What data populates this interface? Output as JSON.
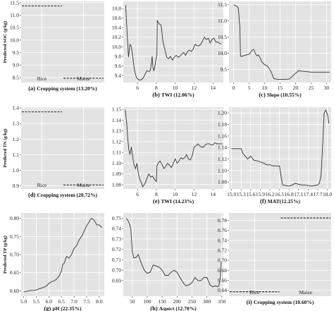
{
  "chart_data": [
    {
      "type": "line",
      "kind": "categorical",
      "caption": {
        "letter": "(a)",
        "text": "Cropping system (13.20%)"
      },
      "ylabel": "Predicted SOC (g/kg)",
      "categories": [
        "Rice",
        "Maize"
      ],
      "values": [
        11.37,
        8.47
      ],
      "ylim": [
        8.3,
        11.55
      ],
      "yticks": [
        8.5,
        9.0,
        9.5,
        10.0,
        10.5,
        11.0,
        11.5
      ],
      "yfmt": 1
    },
    {
      "type": "line",
      "kind": "continuous",
      "caption": {
        "letter": "(b)",
        "text": "TWI (12.06%)"
      },
      "xlim": [
        4.5,
        15.1
      ],
      "ylim": [
        9.25,
        10.95
      ],
      "xticks": [
        6,
        8,
        10,
        12,
        14
      ],
      "yticks": [
        9.4,
        9.6,
        9.8,
        10.0,
        10.2,
        10.4,
        10.6,
        10.8
      ],
      "xfmt": 0,
      "yfmt": 1,
      "x": [
        4.75,
        4.9,
        5.05,
        5.2,
        5.35,
        5.5,
        5.6,
        5.75,
        5.9,
        6.05,
        6.2,
        6.4,
        6.6,
        6.8,
        7.0,
        7.2,
        7.35,
        7.45,
        7.55,
        7.65,
        7.75,
        7.85,
        7.95,
        8.05,
        8.1,
        8.3,
        8.5,
        8.7,
        8.9,
        9.1,
        9.3,
        9.5,
        9.7,
        9.9,
        10.1,
        10.3,
        10.5,
        10.7,
        10.9,
        11.1,
        11.3,
        11.5,
        11.7,
        11.9,
        12.1,
        12.3,
        12.5,
        12.7,
        12.9,
        13.1,
        13.3,
        13.5,
        13.7,
        13.9,
        14.1,
        14.3,
        14.5,
        14.7,
        14.9
      ],
      "y": [
        10.87,
        10.3,
        9.78,
        10.05,
        10.0,
        9.8,
        9.62,
        9.45,
        9.35,
        9.32,
        9.3,
        9.31,
        9.34,
        9.42,
        9.5,
        9.48,
        9.5,
        9.62,
        9.8,
        9.55,
        9.5,
        9.6,
        9.72,
        9.84,
        10.55,
        10.48,
        10.45,
        10.1,
        9.95,
        9.78,
        9.75,
        9.8,
        9.72,
        9.78,
        9.82,
        9.78,
        9.8,
        9.85,
        9.88,
        9.82,
        9.9,
        9.93,
        9.9,
        9.95,
        10.05,
        10.02,
        10.02,
        10.05,
        10.12,
        10.2,
        10.15,
        10.18,
        10.08,
        10.15,
        10.18,
        10.1,
        10.1,
        10.07,
        10.06
      ]
    },
    {
      "type": "line",
      "kind": "continuous",
      "caption": {
        "letter": "(c)",
        "text": "Slope (10.55%)"
      },
      "xlim": [
        -1.5,
        31.5
      ],
      "ylim": [
        9.1,
        11.6
      ],
      "xticks": [
        0,
        5,
        10,
        15,
        20,
        25,
        30
      ],
      "yticks": [
        9.5,
        10.0,
        10.5,
        11.0,
        11.5
      ],
      "xfmt": 0,
      "yfmt": 1,
      "x": [
        0.0,
        0.5,
        1.0,
        1.5,
        2.0,
        2.2,
        2.5,
        3.0,
        4.0,
        5.0,
        6.0,
        6.5,
        7.0,
        7.5,
        8.0,
        8.5,
        9.0,
        10.0,
        11.0,
        12.0,
        13.0,
        14.0,
        15.0,
        16.0,
        17.0,
        18.0,
        19.0,
        20.0,
        21.0,
        22.0,
        23.0,
        24.0,
        25.0,
        26.0,
        27.0,
        28.0,
        29.0,
        30.0,
        31.0
      ],
      "y": [
        11.5,
        11.47,
        11.45,
        11.4,
        10.8,
        9.92,
        9.9,
        9.92,
        9.95,
        9.97,
        10.1,
        10.12,
        10.0,
        9.92,
        9.95,
        9.87,
        9.75,
        9.65,
        9.6,
        9.45,
        9.22,
        9.2,
        9.2,
        9.2,
        9.2,
        9.21,
        9.3,
        9.38,
        9.47,
        9.45,
        9.44,
        9.43,
        9.42,
        9.42,
        9.42,
        9.42,
        9.42,
        9.42,
        9.42
      ]
    },
    {
      "type": "line",
      "kind": "categorical",
      "caption": {
        "letter": "(d)",
        "text": "Cropping system (20.72%)"
      },
      "ylabel": "Predicted TN (g/kg)",
      "categories": [
        "Rice",
        "Maize"
      ],
      "values": [
        1.375,
        0.905
      ],
      "ylim": [
        0.88,
        1.405
      ],
      "yticks": [
        0.9,
        1.0,
        1.1,
        1.2,
        1.3,
        1.4
      ],
      "yfmt": 1
    },
    {
      "type": "line",
      "kind": "continuous",
      "caption": {
        "letter": "(e)",
        "text": "TWI (14.23%)"
      },
      "xlim": [
        4.5,
        15.1
      ],
      "ylim": [
        1.076,
        1.152
      ],
      "xticks": [
        6,
        8,
        10,
        12,
        14
      ],
      "yticks": [
        1.08,
        1.09,
        1.1,
        1.11,
        1.12,
        1.13,
        1.14,
        1.15
      ],
      "xfmt": 0,
      "yfmt": 2,
      "x": [
        4.7,
        4.85,
        5.0,
        5.1,
        5.2,
        5.35,
        5.5,
        5.65,
        5.8,
        5.95,
        6.1,
        6.25,
        6.4,
        6.55,
        6.7,
        6.85,
        7.0,
        7.2,
        7.4,
        7.6,
        7.8,
        8.0,
        8.05,
        8.2,
        8.4,
        8.6,
        8.8,
        9.0,
        9.2,
        9.4,
        9.6,
        9.8,
        10.0,
        10.2,
        10.4,
        10.6,
        10.8,
        11.0,
        11.2,
        11.4,
        11.6,
        11.8,
        12.0,
        12.2,
        12.4,
        12.6,
        12.8,
        13.0,
        13.2,
        13.4,
        13.6,
        13.8,
        14.0,
        14.2,
        14.4,
        14.6,
        14.8,
        15.0
      ],
      "y": [
        1.15,
        1.138,
        1.12,
        1.112,
        1.108,
        1.115,
        1.105,
        1.098,
        1.095,
        1.1,
        1.09,
        1.085,
        1.082,
        1.078,
        1.08,
        1.082,
        1.086,
        1.09,
        1.087,
        1.088,
        1.085,
        1.083,
        1.097,
        1.1,
        1.102,
        1.099,
        1.095,
        1.097,
        1.1,
        1.098,
        1.096,
        1.1,
        1.104,
        1.1,
        1.102,
        1.105,
        1.104,
        1.105,
        1.108,
        1.104,
        1.103,
        1.107,
        1.115,
        1.116,
        1.118,
        1.116,
        1.115,
        1.115,
        1.117,
        1.118,
        1.118,
        1.117,
        1.117,
        1.119,
        1.118,
        1.118,
        1.118,
        1.118
      ]
    },
    {
      "type": "line",
      "kind": "continuous",
      "caption": {
        "letter": "(f)",
        "text": "MAT(12.25%)"
      },
      "xlim": [
        14.92,
        18.12
      ],
      "ylim": [
        1.068,
        1.21
      ],
      "xticks": [
        15.0,
        15.5,
        16.0,
        16.5,
        17.0,
        17.5,
        18.0
      ],
      "xticklabels": [
        "15.0",
        "15.3",
        "15.6",
        "15.9",
        "16.2",
        "16.5",
        "16.8",
        "17.1",
        "17.4",
        "17.7",
        "18.0"
      ],
      "xtickvals": [
        15.0,
        15.3,
        15.6,
        15.9,
        16.2,
        16.5,
        16.8,
        17.1,
        17.4,
        17.7,
        18.0
      ],
      "yticks": [
        1.08,
        1.1,
        1.12,
        1.14,
        1.16,
        1.18,
        1.2
      ],
      "xfmt": 1,
      "yfmt": 2,
      "x": [
        15.0,
        15.1,
        15.2,
        15.3,
        15.35,
        15.4,
        15.5,
        15.6,
        15.7,
        15.8,
        15.9,
        16.0,
        16.1,
        16.2,
        16.3,
        16.4,
        16.5,
        16.55,
        16.6,
        16.7,
        16.8,
        16.9,
        17.0,
        17.1,
        17.2,
        17.3,
        17.4,
        17.5,
        17.6,
        17.7,
        17.75,
        17.8,
        17.85,
        17.9,
        17.95,
        18.0,
        18.05
      ],
      "y": [
        1.138,
        1.138,
        1.138,
        1.138,
        1.13,
        1.127,
        1.12,
        1.125,
        1.118,
        1.117,
        1.115,
        1.113,
        1.11,
        1.11,
        1.108,
        1.108,
        1.108,
        1.09,
        1.075,
        1.074,
        1.073,
        1.075,
        1.078,
        1.076,
        1.075,
        1.075,
        1.074,
        1.073,
        1.074,
        1.075,
        1.078,
        1.09,
        1.14,
        1.2,
        1.205,
        1.198,
        1.182
      ]
    },
    {
      "type": "line",
      "kind": "continuous",
      "caption": {
        "letter": "(g)",
        "text": "pH (22.35%)"
      },
      "ylabel": "Predicted TP (g/kg)",
      "xlim": [
        4.9,
        8.2
      ],
      "ylim": [
        0.585,
        0.815
      ],
      "xticks": [
        5.0,
        5.5,
        6.0,
        6.5,
        7.0,
        7.5,
        8.0
      ],
      "yticks": [
        0.6,
        0.65,
        0.7,
        0.75,
        0.8
      ],
      "xfmt": 1,
      "yfmt": 2,
      "x": [
        5.0,
        5.1,
        5.2,
        5.3,
        5.4,
        5.5,
        5.6,
        5.7,
        5.8,
        5.9,
        6.0,
        6.1,
        6.2,
        6.3,
        6.4,
        6.5,
        6.55,
        6.6,
        6.7,
        6.8,
        6.9,
        7.0,
        7.1,
        7.2,
        7.3,
        7.4,
        7.5,
        7.6,
        7.65,
        7.7,
        7.8,
        7.9,
        8.0,
        8.1
      ],
      "y": [
        0.597,
        0.598,
        0.6,
        0.601,
        0.601,
        0.602,
        0.605,
        0.607,
        0.61,
        0.613,
        0.62,
        0.625,
        0.627,
        0.632,
        0.64,
        0.655,
        0.673,
        0.675,
        0.695,
        0.69,
        0.7,
        0.717,
        0.725,
        0.74,
        0.75,
        0.765,
        0.78,
        0.79,
        0.798,
        0.8,
        0.795,
        0.782,
        0.782,
        0.775
      ]
    },
    {
      "type": "line",
      "kind": "continuous",
      "caption": {
        "letter": "(h)",
        "text": "Aspect (12.70%)"
      },
      "xlim": [
        20,
        355
      ],
      "ylim": [
        0.675,
        0.755
      ],
      "xticks": [
        50,
        100,
        150,
        200,
        250,
        300,
        350
      ],
      "yticks": [
        0.69,
        0.7,
        0.71,
        0.72,
        0.73,
        0.74,
        0.75
      ],
      "xfmt": 0,
      "yfmt": 2,
      "x": [
        30,
        35,
        40,
        45,
        50,
        55,
        60,
        65,
        70,
        80,
        90,
        100,
        110,
        120,
        130,
        140,
        150,
        160,
        170,
        180,
        190,
        200,
        210,
        220,
        230,
        240,
        250,
        260,
        270,
        280,
        290,
        300,
        310,
        320,
        330,
        335,
        340,
        345,
        348
      ],
      "y": [
        0.75,
        0.748,
        0.745,
        0.74,
        0.718,
        0.712,
        0.712,
        0.713,
        0.715,
        0.707,
        0.7,
        0.697,
        0.698,
        0.705,
        0.704,
        0.703,
        0.7,
        0.695,
        0.695,
        0.698,
        0.7,
        0.698,
        0.693,
        0.688,
        0.685,
        0.686,
        0.688,
        0.693,
        0.69,
        0.69,
        0.693,
        0.693,
        0.686,
        0.684,
        0.685,
        0.684,
        0.685,
        0.694,
        0.708
      ]
    },
    {
      "type": "line",
      "kind": "categorical",
      "caption": {
        "letter": "(i)",
        "text": "Cropping system (10.60%)"
      },
      "categories": [
        "Rice",
        "Maize"
      ],
      "values": [
        0.637,
        0.785
      ],
      "ylim": [
        0.628,
        0.795
      ],
      "yticks": [
        0.64,
        0.66,
        0.68,
        0.7,
        0.72,
        0.74,
        0.76,
        0.78
      ],
      "yfmt": 2
    }
  ]
}
